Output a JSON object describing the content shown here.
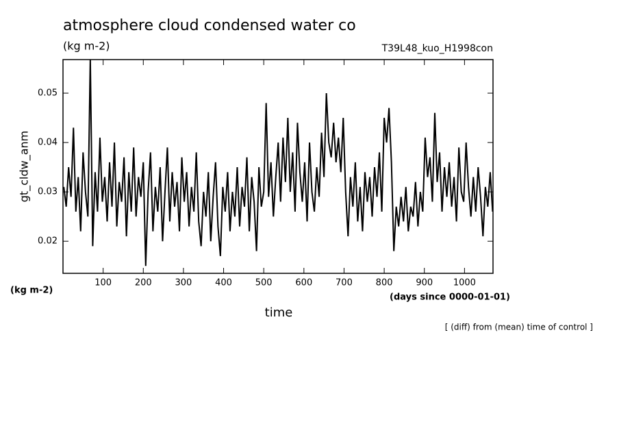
{
  "chart_data": {
    "type": "line",
    "title": "atmosphere cloud condensed water co",
    "subtitle": "(kg m-2)",
    "annotation": "T39L48_kuo_H1998con",
    "ylabel": "gt_cldw_anm",
    "yunit": "(kg m-2)",
    "xunit": "(days since 0000-01-01)",
    "xlabel": "time",
    "note": "[ (diff) from (mean) time of control ]",
    "color": "#000000",
    "xlim": [
      0,
      1071
    ],
    "ylim": [
      0.0135,
      0.0568
    ],
    "xticks": [
      100,
      200,
      300,
      400,
      500,
      600,
      700,
      800,
      900,
      1000
    ],
    "yticks": [
      0.02,
      0.03,
      0.04,
      0.05
    ],
    "x": [
      2,
      8,
      14,
      20,
      26,
      32,
      38,
      44,
      50,
      56,
      62,
      68,
      74,
      80,
      86,
      92,
      98,
      104,
      110,
      116,
      122,
      128,
      134,
      140,
      146,
      152,
      158,
      164,
      170,
      176,
      182,
      188,
      194,
      200,
      206,
      212,
      218,
      224,
      230,
      236,
      242,
      248,
      254,
      260,
      266,
      272,
      278,
      284,
      290,
      296,
      302,
      308,
      314,
      320,
      326,
      332,
      338,
      344,
      350,
      356,
      362,
      368,
      374,
      380,
      386,
      392,
      398,
      404,
      410,
      416,
      422,
      428,
      434,
      440,
      446,
      452,
      458,
      464,
      470,
      476,
      482,
      488,
      494,
      500,
      506,
      512,
      518,
      524,
      530,
      536,
      542,
      548,
      554,
      560,
      566,
      572,
      578,
      584,
      590,
      596,
      602,
      608,
      614,
      620,
      626,
      632,
      638,
      644,
      650,
      656,
      662,
      668,
      674,
      680,
      686,
      692,
      698,
      704,
      710,
      716,
      722,
      728,
      734,
      740,
      746,
      752,
      758,
      764,
      770,
      776,
      782,
      788,
      794,
      800,
      806,
      812,
      818,
      824,
      830,
      836,
      842,
      848,
      854,
      860,
      866,
      872,
      878,
      884,
      890,
      896,
      902,
      908,
      914,
      920,
      926,
      932,
      938,
      944,
      950,
      956,
      962,
      968,
      974,
      980,
      986,
      992,
      998,
      1004,
      1010,
      1016,
      1022,
      1028,
      1034,
      1040,
      1046,
      1052,
      1058,
      1064,
      1070
    ],
    "values": [
      0.031,
      0.027,
      0.035,
      0.029,
      0.043,
      0.026,
      0.033,
      0.022,
      0.038,
      0.03,
      0.025,
      0.057,
      0.019,
      0.034,
      0.026,
      0.041,
      0.028,
      0.033,
      0.024,
      0.036,
      0.027,
      0.04,
      0.023,
      0.032,
      0.028,
      0.037,
      0.021,
      0.034,
      0.026,
      0.039,
      0.025,
      0.033,
      0.029,
      0.036,
      0.015,
      0.03,
      0.038,
      0.022,
      0.031,
      0.026,
      0.035,
      0.02,
      0.03,
      0.039,
      0.024,
      0.034,
      0.027,
      0.032,
      0.022,
      0.037,
      0.028,
      0.034,
      0.023,
      0.031,
      0.026,
      0.038,
      0.024,
      0.019,
      0.03,
      0.025,
      0.034,
      0.02,
      0.029,
      0.036,
      0.023,
      0.017,
      0.031,
      0.026,
      0.034,
      0.022,
      0.03,
      0.025,
      0.035,
      0.023,
      0.031,
      0.027,
      0.037,
      0.022,
      0.033,
      0.028,
      0.018,
      0.035,
      0.027,
      0.03,
      0.048,
      0.029,
      0.036,
      0.025,
      0.033,
      0.04,
      0.028,
      0.041,
      0.032,
      0.045,
      0.03,
      0.038,
      0.026,
      0.044,
      0.034,
      0.028,
      0.036,
      0.024,
      0.04,
      0.03,
      0.026,
      0.035,
      0.029,
      0.042,
      0.033,
      0.05,
      0.04,
      0.037,
      0.044,
      0.036,
      0.041,
      0.034,
      0.045,
      0.03,
      0.021,
      0.033,
      0.027,
      0.036,
      0.024,
      0.031,
      0.022,
      0.034,
      0.028,
      0.033,
      0.025,
      0.035,
      0.029,
      0.038,
      0.026,
      0.045,
      0.04,
      0.047,
      0.036,
      0.018,
      0.027,
      0.023,
      0.029,
      0.024,
      0.031,
      0.022,
      0.027,
      0.025,
      0.032,
      0.023,
      0.03,
      0.026,
      0.041,
      0.033,
      0.037,
      0.028,
      0.046,
      0.032,
      0.038,
      0.026,
      0.035,
      0.029,
      0.036,
      0.027,
      0.033,
      0.024,
      0.039,
      0.03,
      0.028,
      0.04,
      0.031,
      0.025,
      0.033,
      0.026,
      0.035,
      0.029,
      0.021,
      0.031,
      0.027,
      0.034,
      0.026
    ]
  }
}
